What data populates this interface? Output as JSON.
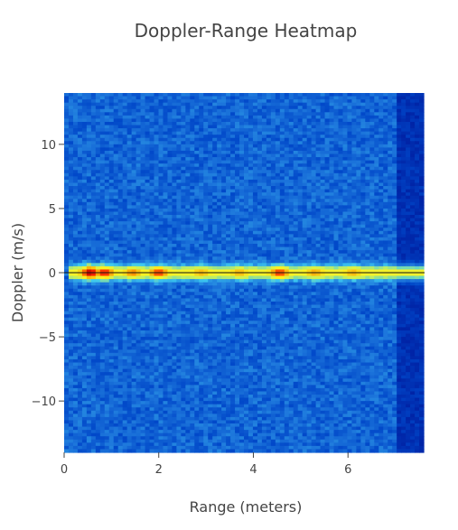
{
  "chart_data": {
    "type": "heatmap",
    "title": "Doppler-Range Heatmap",
    "xlabel": "Range (meters)",
    "ylabel": "Doppler (m/s)",
    "xlim": [
      0,
      7.6
    ],
    "ylim": [
      -14,
      14
    ],
    "x_ticks": [
      0,
      2,
      4,
      6
    ],
    "x_tick_labels": [
      "0",
      "2",
      "4",
      "6"
    ],
    "y_ticks": [
      10,
      5,
      0,
      -5,
      -10
    ],
    "y_tick_labels": [
      "10",
      "5",
      "0",
      "−5",
      "−10"
    ],
    "colorscale": [
      "#000c8f",
      "#0046c8",
      "#1e78dc",
      "#3cc8f0",
      "#c8f05a",
      "#fff21e",
      "#ff9600",
      "#ff2800",
      "#b40000"
    ],
    "background_level": 0.2,
    "right_edge_range": 7.05,
    "right_edge_level": 0.08,
    "zero_doppler_band": {
      "doppler": 0,
      "half_width": 0.7,
      "range_start": 0.1,
      "range_end": 7.6,
      "base_level": 0.62,
      "hotspots": [
        {
          "range": 0.55,
          "level": 1.0
        },
        {
          "range": 0.85,
          "level": 0.92
        },
        {
          "range": 1.45,
          "level": 0.78
        },
        {
          "range": 2.0,
          "level": 0.88
        },
        {
          "range": 2.9,
          "level": 0.72
        },
        {
          "range": 3.7,
          "level": 0.72
        },
        {
          "range": 4.55,
          "level": 0.88
        },
        {
          "range": 5.3,
          "level": 0.74
        },
        {
          "range": 6.1,
          "level": 0.72
        },
        {
          "range": 7.35,
          "level": 0.4
        }
      ]
    }
  }
}
